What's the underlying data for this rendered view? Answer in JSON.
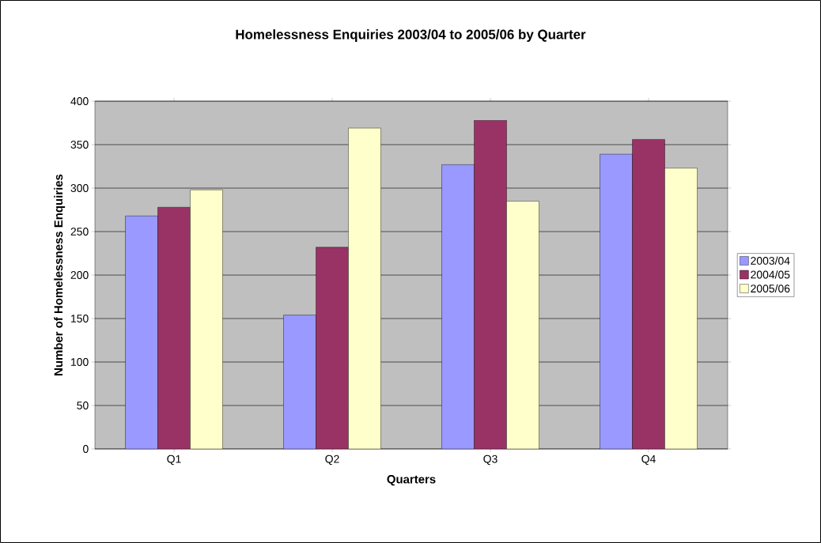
{
  "chart_data": {
    "type": "bar",
    "title": "Homelessness Enquiries 2003/04 to 2005/06 by Quarter",
    "xlabel": "Quarters",
    "ylabel": "Number of Homelessness Enquiries",
    "categories": [
      "Q1",
      "Q2",
      "Q3",
      "Q4"
    ],
    "series": [
      {
        "name": "2003/04",
        "color": "#9999ff",
        "values": [
          268,
          154,
          327,
          339
        ]
      },
      {
        "name": "2004/05",
        "color": "#993366",
        "values": [
          278,
          232,
          378,
          356
        ]
      },
      {
        "name": "2005/06",
        "color": "#ffffcc",
        "values": [
          298,
          369,
          285,
          323
        ]
      }
    ],
    "ylim": [
      0,
      400
    ],
    "yticks": [
      0,
      50,
      100,
      150,
      200,
      250,
      300,
      350,
      400
    ],
    "grid": "y",
    "legend": "right"
  }
}
